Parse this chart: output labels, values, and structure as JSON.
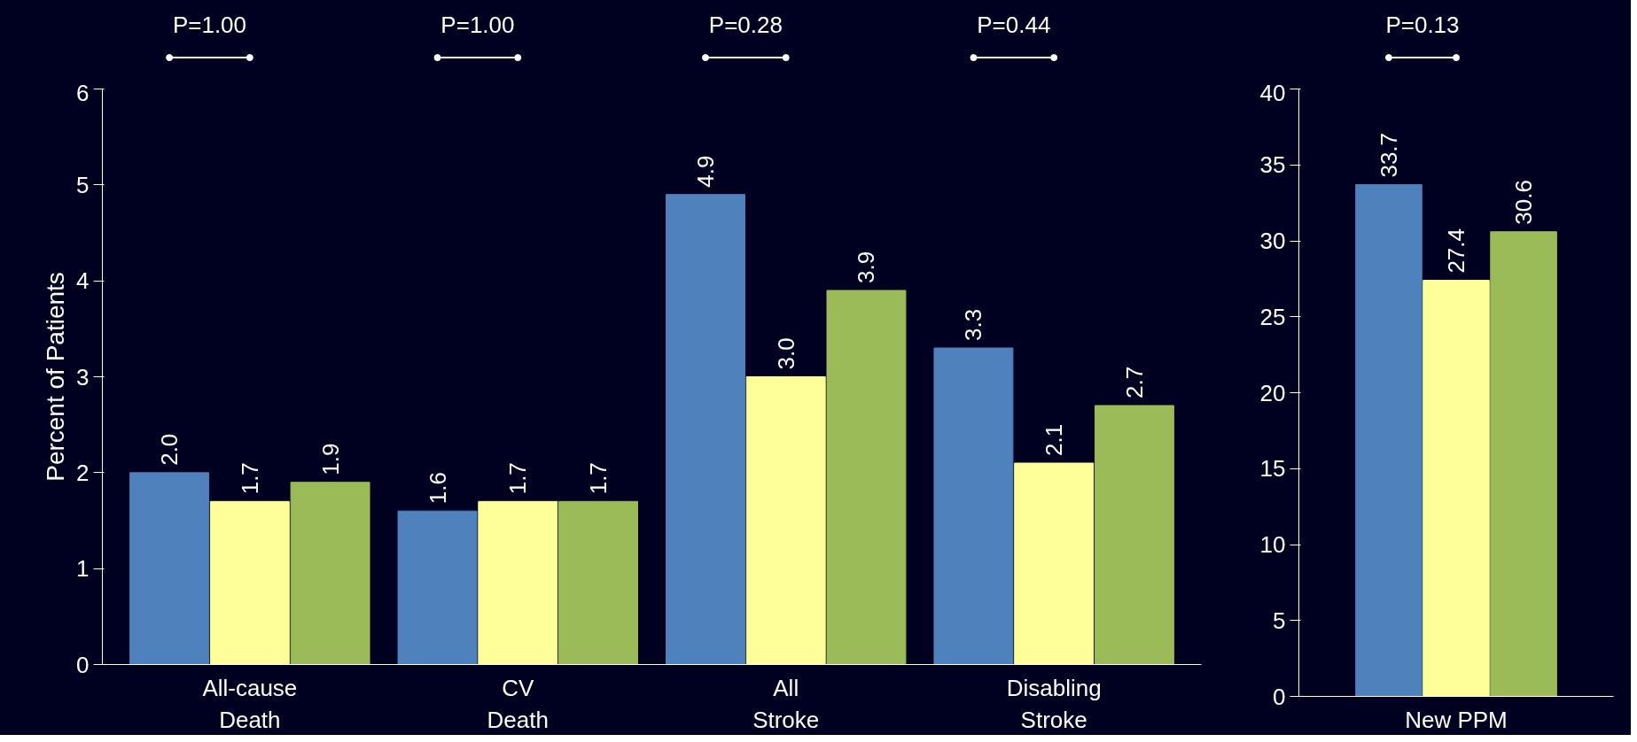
{
  "chart_data": [
    {
      "type": "bar",
      "ylabel": "Percent of Patients",
      "categories": [
        "All-cause\nDeath",
        "CV\nDeath",
        "All\nStroke",
        "Disabling\nStroke"
      ],
      "ylim": [
        0,
        6
      ],
      "yticks": [
        0,
        1,
        2,
        3,
        4,
        5,
        6
      ],
      "grid": false,
      "annotations": [
        "P=1.00",
        "P=1.00",
        "P=0.28",
        "P=0.44"
      ],
      "series": [
        {
          "color": "#4f81bd",
          "values": [
            2.0,
            1.6,
            4.9,
            3.3
          ],
          "value_labels": [
            "2.0",
            "1.6",
            "4.9",
            "3.3"
          ]
        },
        {
          "color": "#ffff99",
          "values": [
            1.7,
            1.7,
            3.0,
            2.1
          ],
          "value_labels": [
            "1.7",
            "1.7",
            "3.0",
            "2.1"
          ]
        },
        {
          "color": "#9bbb59",
          "values": [
            1.9,
            1.7,
            3.9,
            2.7
          ],
          "value_labels": [
            "1.9",
            "1.7",
            "3.9",
            "2.7"
          ]
        }
      ]
    },
    {
      "type": "bar",
      "categories": [
        "New PPM"
      ],
      "ylim": [
        0,
        40
      ],
      "yticks": [
        0,
        5,
        10,
        15,
        20,
        25,
        30,
        35,
        40
      ],
      "grid": false,
      "annotations": [
        "P=0.13"
      ],
      "series": [
        {
          "color": "#4f81bd",
          "values": [
            33.7
          ],
          "value_labels": [
            "33.7"
          ]
        },
        {
          "color": "#ffff99",
          "values": [
            27.4
          ],
          "value_labels": [
            "27.4"
          ]
        },
        {
          "color": "#9bbb59",
          "values": [
            30.6
          ],
          "value_labels": [
            "30.6"
          ]
        }
      ]
    }
  ]
}
